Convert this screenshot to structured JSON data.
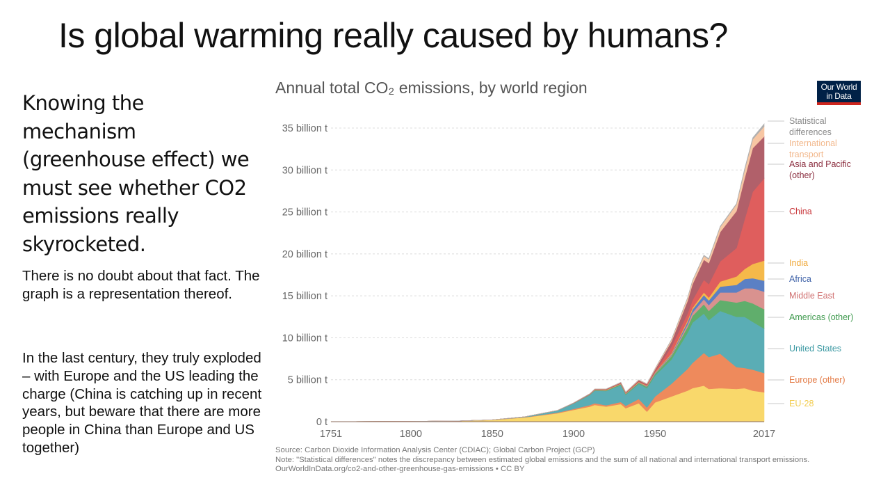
{
  "slide": {
    "title": "Is global warming really caused by humans?",
    "lead": "Knowing the mechanism (greenhouse effect) we must see whether CO2 emissions really skyrocketed.",
    "paragraph1": "There is no doubt about that fact. The graph is a representation thereof.",
    "paragraph2": "In the last century, they truly exploded – with Europe and the US leading the charge (China is catching up in recent years, but beware that there are more people in China than Europe and US together)"
  },
  "logo": {
    "line1": "Our World",
    "line2": "in Data",
    "bg": "#002147",
    "accent": "#ce261e"
  },
  "footer": {
    "source": "Source: Carbon Dioxide Information Analysis Center (CDIAC); Global Carbon Project (GCP)",
    "note": "Note: \"Statistical differences\" notes the discrepancy between estimated global emissions and the sum of all national and international transport emissions.",
    "url": "OurWorldInData.org/co2-and-other-greenhouse-gas-emissions • CC BY"
  },
  "chart_data": {
    "type": "area",
    "stacked": true,
    "title": "Annual total CO₂ emissions, by world region",
    "xlabel": "",
    "ylabel": "",
    "xlim": [
      1751,
      2017
    ],
    "ylim": [
      0,
      35
    ],
    "units": "billion t",
    "grid": true,
    "legend": "right",
    "x_ticks": [
      "1751",
      "1800",
      "1850",
      "1900",
      "1950",
      "2017"
    ],
    "x_tick_values": [
      1751,
      1800,
      1850,
      1900,
      1950,
      2017
    ],
    "y_ticks": [
      "0 t",
      "5 billion t",
      "10 billion t",
      "15 billion t",
      "20 billion t",
      "25 billion t",
      "30 billion t",
      "35 billion t"
    ],
    "y_tick_values": [
      0,
      5,
      10,
      15,
      20,
      25,
      30,
      35
    ],
    "x": [
      1751,
      1800,
      1830,
      1850,
      1870,
      1890,
      1900,
      1910,
      1913,
      1920,
      1929,
      1932,
      1940,
      1945,
      1950,
      1960,
      1970,
      1973,
      1980,
      1983,
      1990,
      2000,
      2005,
      2010,
      2017
    ],
    "series": [
      {
        "name": "EU-28",
        "color": "#f9d86b",
        "values": [
          0.01,
          0.03,
          0.1,
          0.2,
          0.5,
          1.0,
          1.4,
          1.8,
          2.0,
          1.8,
          2.1,
          1.6,
          2.2,
          1.2,
          2.3,
          3.0,
          3.7,
          4.0,
          4.3,
          3.9,
          4.0,
          3.9,
          4.0,
          3.7,
          3.5
        ]
      },
      {
        "name": "Europe (other)",
        "color": "#ee8a5c",
        "values": [
          0.0,
          0.0,
          0.0,
          0.01,
          0.03,
          0.08,
          0.12,
          0.18,
          0.2,
          0.15,
          0.25,
          0.3,
          0.5,
          0.5,
          0.7,
          1.5,
          2.6,
          3.0,
          3.9,
          3.8,
          4.1,
          2.6,
          2.4,
          2.5,
          2.3
        ]
      },
      {
        "name": "United States",
        "color": "#5aadb5",
        "values": [
          0.0,
          0.0,
          0.0,
          0.01,
          0.06,
          0.25,
          0.65,
          1.2,
          1.5,
          1.7,
          2.0,
          1.3,
          1.8,
          2.3,
          2.5,
          2.9,
          4.3,
          4.8,
          4.7,
          4.4,
          5.1,
          6.0,
          6.1,
          5.7,
          5.3
        ]
      },
      {
        "name": "Americas (other)",
        "color": "#60ae6c",
        "values": [
          0.0,
          0.0,
          0.0,
          0.0,
          0.0,
          0.01,
          0.02,
          0.05,
          0.06,
          0.07,
          0.1,
          0.09,
          0.12,
          0.15,
          0.2,
          0.4,
          0.7,
          0.8,
          1.1,
          1.1,
          1.3,
          1.7,
          1.9,
          2.2,
          2.3
        ]
      },
      {
        "name": "Middle East",
        "color": "#d9928f",
        "values": [
          0.0,
          0.0,
          0.0,
          0.0,
          0.0,
          0.0,
          0.0,
          0.0,
          0.0,
          0.01,
          0.01,
          0.01,
          0.02,
          0.03,
          0.05,
          0.1,
          0.3,
          0.4,
          0.6,
          0.7,
          0.9,
          1.2,
          1.5,
          1.8,
          2.1
        ]
      },
      {
        "name": "Africa",
        "color": "#5b80c4",
        "values": [
          0.0,
          0.0,
          0.0,
          0.0,
          0.0,
          0.0,
          0.01,
          0.02,
          0.02,
          0.02,
          0.03,
          0.03,
          0.04,
          0.05,
          0.06,
          0.1,
          0.3,
          0.35,
          0.5,
          0.55,
          0.7,
          0.9,
          1.1,
          1.2,
          1.3
        ]
      },
      {
        "name": "India",
        "color": "#f5b94a",
        "values": [
          0.0,
          0.0,
          0.0,
          0.0,
          0.0,
          0.0,
          0.02,
          0.03,
          0.04,
          0.05,
          0.05,
          0.05,
          0.06,
          0.07,
          0.08,
          0.12,
          0.2,
          0.22,
          0.3,
          0.35,
          0.6,
          1.0,
          1.2,
          1.7,
          2.4
        ]
      },
      {
        "name": "China",
        "color": "#df5e5d",
        "values": [
          0.0,
          0.0,
          0.0,
          0.0,
          0.0,
          0.0,
          0.0,
          0.01,
          0.01,
          0.02,
          0.03,
          0.03,
          0.05,
          0.06,
          0.08,
          0.8,
          0.8,
          0.9,
          1.5,
          1.6,
          2.4,
          3.4,
          5.9,
          8.6,
          9.8
        ]
      },
      {
        "name": "Asia and Pacific (other)",
        "color": "#b1606a",
        "values": [
          0.0,
          0.0,
          0.0,
          0.0,
          0.0,
          0.0,
          0.03,
          0.05,
          0.06,
          0.07,
          0.1,
          0.1,
          0.15,
          0.12,
          0.25,
          0.6,
          1.5,
          1.9,
          2.4,
          2.5,
          3.5,
          4.4,
          4.9,
          5.2,
          5.0
        ]
      },
      {
        "name": "International transport",
        "color": "#f7c6a3",
        "values": [
          0.0,
          0.0,
          0.0,
          0.0,
          0.0,
          0.0,
          0.0,
          0.01,
          0.01,
          0.02,
          0.03,
          0.03,
          0.05,
          0.05,
          0.12,
          0.2,
          0.35,
          0.4,
          0.45,
          0.45,
          0.6,
          0.8,
          0.95,
          1.05,
          1.2
        ]
      },
      {
        "name": "Statistical differences",
        "color": "#b0b0b0",
        "values": [
          0.0,
          0.0,
          0.0,
          0.0,
          0.0,
          0.0,
          0.0,
          0.0,
          0.0,
          0.0,
          0.0,
          0.0,
          0.0,
          0.0,
          0.0,
          0.05,
          0.05,
          0.05,
          0.1,
          0.1,
          0.1,
          0.1,
          0.2,
          0.2,
          0.3
        ]
      }
    ]
  }
}
